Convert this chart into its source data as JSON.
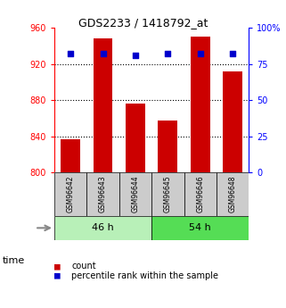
{
  "title": "GDS2233 / 1418792_at",
  "samples": [
    "GSM96642",
    "GSM96643",
    "GSM96644",
    "GSM96645",
    "GSM96646",
    "GSM96648"
  ],
  "counts": [
    837,
    948,
    876,
    857,
    950,
    912
  ],
  "percentiles": [
    82,
    82,
    81,
    82,
    82,
    82
  ],
  "ylim_left": [
    800,
    960
  ],
  "ylim_right": [
    0,
    100
  ],
  "yticks_left": [
    800,
    840,
    880,
    920,
    960
  ],
  "yticks_right": [
    0,
    25,
    50,
    75,
    100
  ],
  "ytick_right_labels": [
    "0",
    "25",
    "50",
    "75",
    "100%"
  ],
  "groups": [
    {
      "label": "46 h",
      "indices": [
        0,
        1,
        2
      ],
      "color": "#b8f0b8"
    },
    {
      "label": "54 h",
      "indices": [
        3,
        4,
        5
      ],
      "color": "#55dd55"
    }
  ],
  "bar_color": "#cc0000",
  "scatter_color": "#0000cc",
  "bar_width": 0.6,
  "label_area_color": "#cccccc",
  "bg_color": "#ffffff",
  "time_label": "time",
  "legend_count_label": "count",
  "legend_pct_label": "percentile rank within the sample"
}
